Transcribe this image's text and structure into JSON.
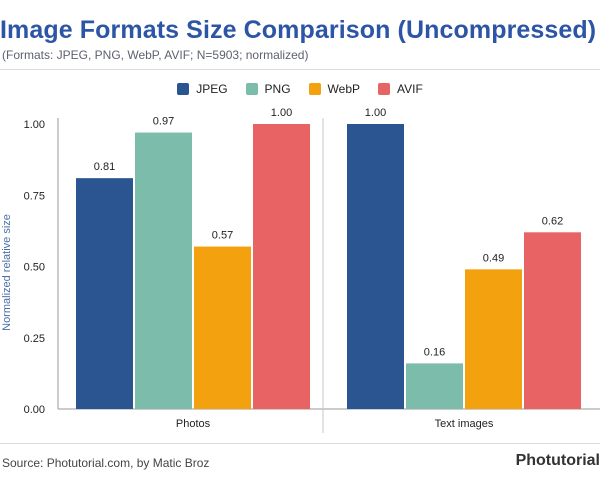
{
  "header": {
    "title": "Image Formats Size Comparison (Uncompressed)",
    "subtitle": "(Formats: JPEG, PNG, WebP, AVIF; N=5903; normalized)"
  },
  "footer": {
    "source": "Source: Photutorial.com, by Matic Broz",
    "brand": "Photutorial"
  },
  "chart_data": {
    "type": "bar",
    "categories": [
      "Photos",
      "Text images"
    ],
    "series": [
      {
        "name": "JPEG",
        "color": "#2b5591",
        "values": [
          0.81,
          1.0
        ],
        "labels": [
          "0.81",
          "1.00"
        ]
      },
      {
        "name": "PNG",
        "color": "#7bbcaa",
        "values": [
          0.97,
          0.16
        ],
        "labels": [
          "0.97",
          "0.16"
        ]
      },
      {
        "name": "WebP",
        "color": "#f3a10e",
        "values": [
          0.57,
          0.49
        ],
        "labels": [
          "0.57",
          "0.49"
        ]
      },
      {
        "name": "AVIF",
        "color": "#e86363",
        "values": [
          1.0,
          0.62
        ],
        "labels": [
          "1.00",
          "0.62"
        ]
      }
    ],
    "ylabel": "Normalized relative size",
    "xlabel": "",
    "ylim": [
      0,
      1.0
    ],
    "yticks": [
      "0.00",
      "0.25",
      "0.50",
      "0.75",
      "1.00"
    ],
    "grid": false,
    "legend_position": "top-center"
  }
}
